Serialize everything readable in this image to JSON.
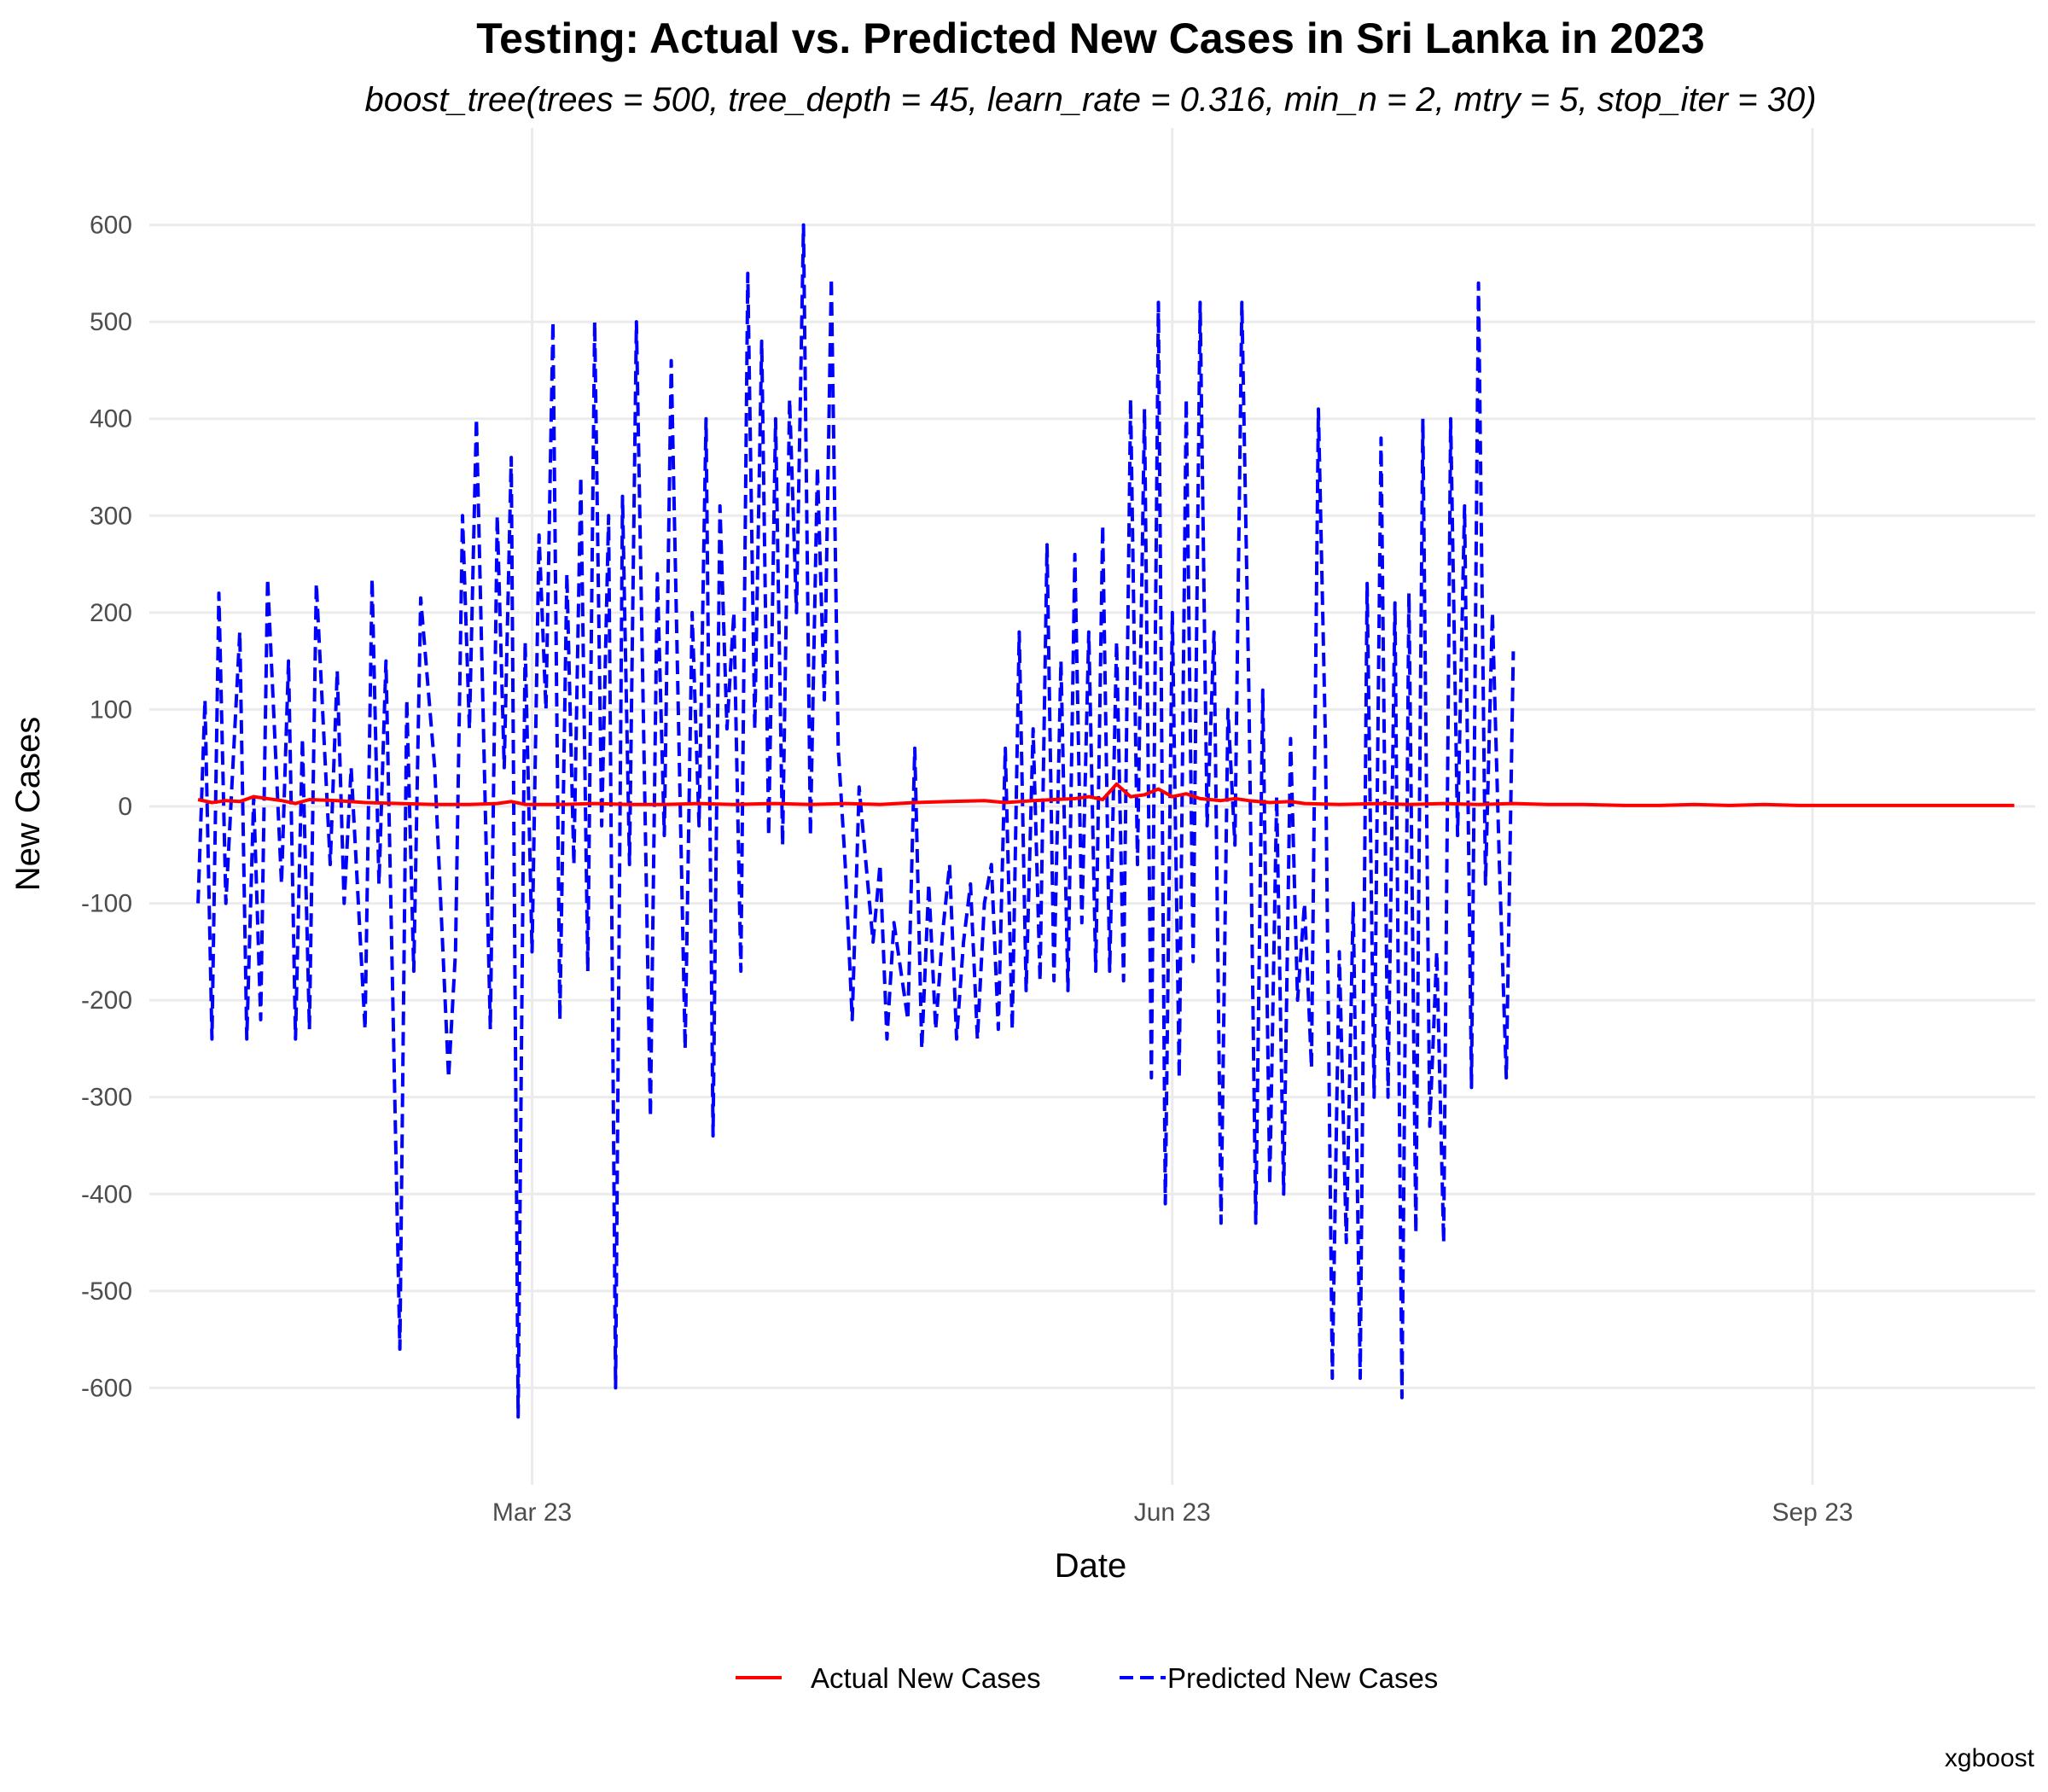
{
  "chart_data": {
    "type": "line",
    "title": "Testing: Actual vs. Predicted New Cases in Sri Lanka in 2023",
    "subtitle": "boost_tree(trees = 500, tree_depth = 45, learn_rate = 0.316, min_n = 2, mtry = 5, stop_iter = 30)",
    "xlabel": "Date",
    "ylabel": "New Cases",
    "caption": "xgboost",
    "x_range": [
      "2023-01-05",
      "2023-10-03"
    ],
    "x_ticks": [
      {
        "date": "2023-03-01",
        "label": "Mar 23"
      },
      {
        "date": "2023-06-01",
        "label": "Jun 23"
      },
      {
        "date": "2023-09-01",
        "label": "Sep 23"
      }
    ],
    "ylim": [
      -700,
      700
    ],
    "y_ticks": [
      600,
      500,
      400,
      300,
      200,
      100,
      0,
      -100,
      -200,
      -300,
      -400,
      -500,
      -600
    ],
    "grid": true,
    "legend_position": "bottom",
    "series": [
      {
        "name": "Actual New Cases",
        "color": "#ff0000",
        "dash": "solid",
        "points": [
          [
            "2023-01-12",
            7
          ],
          [
            "2023-01-14",
            4
          ],
          [
            "2023-01-16",
            6
          ],
          [
            "2023-01-18",
            5
          ],
          [
            "2023-01-20",
            10
          ],
          [
            "2023-01-24",
            6
          ],
          [
            "2023-01-26",
            3
          ],
          [
            "2023-01-28",
            7
          ],
          [
            "2023-02-01",
            6
          ],
          [
            "2023-02-05",
            4
          ],
          [
            "2023-02-10",
            3
          ],
          [
            "2023-02-15",
            2
          ],
          [
            "2023-02-20",
            2
          ],
          [
            "2023-02-24",
            3
          ],
          [
            "2023-02-26",
            5
          ],
          [
            "2023-02-28",
            2
          ],
          [
            "2023-03-05",
            2
          ],
          [
            "2023-03-10",
            3
          ],
          [
            "2023-03-15",
            2
          ],
          [
            "2023-03-20",
            2
          ],
          [
            "2023-03-25",
            3
          ],
          [
            "2023-03-30",
            2
          ],
          [
            "2023-04-05",
            3
          ],
          [
            "2023-04-10",
            2
          ],
          [
            "2023-04-15",
            3
          ],
          [
            "2023-04-20",
            2
          ],
          [
            "2023-04-25",
            4
          ],
          [
            "2023-04-30",
            5
          ],
          [
            "2023-05-05",
            6
          ],
          [
            "2023-05-08",
            4
          ],
          [
            "2023-05-12",
            6
          ],
          [
            "2023-05-15",
            7
          ],
          [
            "2023-05-18",
            8
          ],
          [
            "2023-05-20",
            10
          ],
          [
            "2023-05-22",
            7
          ],
          [
            "2023-05-24",
            23
          ],
          [
            "2023-05-26",
            10
          ],
          [
            "2023-05-28",
            12
          ],
          [
            "2023-05-30",
            18
          ],
          [
            "2023-06-01",
            10
          ],
          [
            "2023-06-03",
            13
          ],
          [
            "2023-06-05",
            8
          ],
          [
            "2023-06-08",
            6
          ],
          [
            "2023-06-10",
            8
          ],
          [
            "2023-06-12",
            6
          ],
          [
            "2023-06-15",
            4
          ],
          [
            "2023-06-18",
            5
          ],
          [
            "2023-06-20",
            3
          ],
          [
            "2023-06-25",
            2
          ],
          [
            "2023-07-01",
            3
          ],
          [
            "2023-07-05",
            2
          ],
          [
            "2023-07-10",
            3
          ],
          [
            "2023-07-15",
            2
          ],
          [
            "2023-07-20",
            3
          ],
          [
            "2023-07-25",
            2
          ],
          [
            "2023-07-30",
            2
          ],
          [
            "2023-08-05",
            1
          ],
          [
            "2023-08-10",
            1
          ],
          [
            "2023-08-15",
            2
          ],
          [
            "2023-08-20",
            1
          ],
          [
            "2023-08-25",
            2
          ],
          [
            "2023-08-30",
            1
          ],
          [
            "2023-09-05",
            1
          ],
          [
            "2023-09-10",
            1
          ],
          [
            "2023-09-15",
            1
          ],
          [
            "2023-09-20",
            1
          ],
          [
            "2023-09-25",
            1
          ],
          [
            "2023-09-30",
            1
          ]
        ]
      },
      {
        "name": "Predicted New Cases",
        "color": "#0000ff",
        "dash": "dashed",
        "points": [
          [
            "2023-01-12",
            -100
          ],
          [
            "2023-01-13",
            110
          ],
          [
            "2023-01-14",
            -240
          ],
          [
            "2023-01-15",
            220
          ],
          [
            "2023-01-16",
            -100
          ],
          [
            "2023-01-18",
            180
          ],
          [
            "2023-01-19",
            -240
          ],
          [
            "2023-01-20",
            10
          ],
          [
            "2023-01-21",
            -220
          ],
          [
            "2023-01-22",
            235
          ],
          [
            "2023-01-24",
            -80
          ],
          [
            "2023-01-25",
            150
          ],
          [
            "2023-01-26",
            -240
          ],
          [
            "2023-01-27",
            70
          ],
          [
            "2023-01-28",
            -230
          ],
          [
            "2023-01-29",
            230
          ],
          [
            "2023-01-31",
            -60
          ],
          [
            "2023-02-01",
            140
          ],
          [
            "2023-02-02",
            -100
          ],
          [
            "2023-02-03",
            40
          ],
          [
            "2023-02-05",
            -230
          ],
          [
            "2023-02-06",
            235
          ],
          [
            "2023-02-07",
            -80
          ],
          [
            "2023-02-08",
            150
          ],
          [
            "2023-02-10",
            -560
          ],
          [
            "2023-02-11",
            110
          ],
          [
            "2023-02-12",
            -170
          ],
          [
            "2023-02-13",
            215
          ],
          [
            "2023-02-15",
            40
          ],
          [
            "2023-02-17",
            -280
          ],
          [
            "2023-02-18",
            -150
          ],
          [
            "2023-02-19",
            300
          ],
          [
            "2023-02-20",
            80
          ],
          [
            "2023-02-21",
            400
          ],
          [
            "2023-02-23",
            -230
          ],
          [
            "2023-02-24",
            300
          ],
          [
            "2023-02-25",
            40
          ],
          [
            "2023-02-26",
            360
          ],
          [
            "2023-02-27",
            -630
          ],
          [
            "2023-02-28",
            170
          ],
          [
            "2023-03-01",
            -150
          ],
          [
            "2023-03-02",
            280
          ],
          [
            "2023-03-03",
            100
          ],
          [
            "2023-03-04",
            500
          ],
          [
            "2023-03-05",
            -220
          ],
          [
            "2023-03-06",
            240
          ],
          [
            "2023-03-07",
            -60
          ],
          [
            "2023-03-08",
            340
          ],
          [
            "2023-03-09",
            -170
          ],
          [
            "2023-03-10",
            500
          ],
          [
            "2023-03-11",
            -20
          ],
          [
            "2023-03-12",
            300
          ],
          [
            "2023-03-13",
            -600
          ],
          [
            "2023-03-14",
            320
          ],
          [
            "2023-03-15",
            -60
          ],
          [
            "2023-03-16",
            500
          ],
          [
            "2023-03-18",
            -320
          ],
          [
            "2023-03-19",
            240
          ],
          [
            "2023-03-20",
            -30
          ],
          [
            "2023-03-21",
            460
          ],
          [
            "2023-03-23",
            -250
          ],
          [
            "2023-03-24",
            200
          ],
          [
            "2023-03-25",
            -20
          ],
          [
            "2023-03-26",
            400
          ],
          [
            "2023-03-27",
            -340
          ],
          [
            "2023-03-28",
            310
          ],
          [
            "2023-03-29",
            80
          ],
          [
            "2023-03-30",
            200
          ],
          [
            "2023-03-31",
            -170
          ],
          [
            "2023-04-01",
            550
          ],
          [
            "2023-04-02",
            80
          ],
          [
            "2023-04-03",
            480
          ],
          [
            "2023-04-04",
            -30
          ],
          [
            "2023-04-05",
            400
          ],
          [
            "2023-04-06",
            -40
          ],
          [
            "2023-04-07",
            420
          ],
          [
            "2023-04-08",
            200
          ],
          [
            "2023-04-09",
            600
          ],
          [
            "2023-04-10",
            -30
          ],
          [
            "2023-04-11",
            350
          ],
          [
            "2023-04-12",
            110
          ],
          [
            "2023-04-13",
            545
          ],
          [
            "2023-04-14",
            60
          ],
          [
            "2023-04-15",
            -60
          ],
          [
            "2023-04-16",
            -220
          ],
          [
            "2023-04-17",
            20
          ],
          [
            "2023-04-19",
            -140
          ],
          [
            "2023-04-20",
            -60
          ],
          [
            "2023-04-21",
            -240
          ],
          [
            "2023-04-22",
            -120
          ],
          [
            "2023-04-24",
            -220
          ],
          [
            "2023-04-25",
            60
          ],
          [
            "2023-04-26",
            -250
          ],
          [
            "2023-04-27",
            -80
          ],
          [
            "2023-04-28",
            -230
          ],
          [
            "2023-04-29",
            -130
          ],
          [
            "2023-04-30",
            -60
          ],
          [
            "2023-05-01",
            -240
          ],
          [
            "2023-05-02",
            -140
          ],
          [
            "2023-05-03",
            -80
          ],
          [
            "2023-05-04",
            -240
          ],
          [
            "2023-05-05",
            -100
          ],
          [
            "2023-05-06",
            -60
          ],
          [
            "2023-05-07",
            -230
          ],
          [
            "2023-05-08",
            60
          ],
          [
            "2023-05-09",
            -230
          ],
          [
            "2023-05-10",
            180
          ],
          [
            "2023-05-11",
            -190
          ],
          [
            "2023-05-12",
            80
          ],
          [
            "2023-05-13",
            -180
          ],
          [
            "2023-05-14",
            270
          ],
          [
            "2023-05-15",
            -180
          ],
          [
            "2023-05-16",
            150
          ],
          [
            "2023-05-17",
            -190
          ],
          [
            "2023-05-18",
            260
          ],
          [
            "2023-05-19",
            -120
          ],
          [
            "2023-05-20",
            180
          ],
          [
            "2023-05-21",
            -170
          ],
          [
            "2023-05-22",
            290
          ],
          [
            "2023-05-23",
            -170
          ],
          [
            "2023-05-24",
            170
          ],
          [
            "2023-05-25",
            -180
          ],
          [
            "2023-05-26",
            420
          ],
          [
            "2023-05-27",
            -60
          ],
          [
            "2023-05-28",
            410
          ],
          [
            "2023-05-29",
            -280
          ],
          [
            "2023-05-30",
            520
          ],
          [
            "2023-05-31",
            -410
          ],
          [
            "2023-06-01",
            200
          ],
          [
            "2023-06-02",
            -280
          ],
          [
            "2023-06-03",
            420
          ],
          [
            "2023-06-04",
            -160
          ],
          [
            "2023-06-05",
            520
          ],
          [
            "2023-06-06",
            -20
          ],
          [
            "2023-06-07",
            180
          ],
          [
            "2023-06-08",
            -430
          ],
          [
            "2023-06-09",
            100
          ],
          [
            "2023-06-10",
            -40
          ],
          [
            "2023-06-11",
            520
          ],
          [
            "2023-06-12",
            120
          ],
          [
            "2023-06-13",
            -430
          ],
          [
            "2023-06-14",
            120
          ],
          [
            "2023-06-15",
            -390
          ],
          [
            "2023-06-16",
            10
          ],
          [
            "2023-06-17",
            -400
          ],
          [
            "2023-06-18",
            70
          ],
          [
            "2023-06-19",
            -200
          ],
          [
            "2023-06-20",
            -100
          ],
          [
            "2023-06-21",
            -270
          ],
          [
            "2023-06-22",
            410
          ],
          [
            "2023-06-23",
            70
          ],
          [
            "2023-06-24",
            -590
          ],
          [
            "2023-06-25",
            -150
          ],
          [
            "2023-06-26",
            -450
          ],
          [
            "2023-06-27",
            -100
          ],
          [
            "2023-06-28",
            -590
          ],
          [
            "2023-06-29",
            230
          ],
          [
            "2023-06-30",
            -300
          ],
          [
            "2023-07-01",
            380
          ],
          [
            "2023-07-02",
            -300
          ],
          [
            "2023-07-03",
            210
          ],
          [
            "2023-07-04",
            -610
          ],
          [
            "2023-07-05",
            220
          ],
          [
            "2023-07-06",
            -440
          ],
          [
            "2023-07-07",
            400
          ],
          [
            "2023-07-08",
            -330
          ],
          [
            "2023-07-09",
            -150
          ],
          [
            "2023-07-10",
            -450
          ],
          [
            "2023-07-11",
            400
          ],
          [
            "2023-07-12",
            -30
          ],
          [
            "2023-07-13",
            310
          ],
          [
            "2023-07-14",
            -290
          ],
          [
            "2023-07-15",
            540
          ],
          [
            "2023-07-16",
            -80
          ],
          [
            "2023-07-17",
            200
          ],
          [
            "2023-07-18",
            -60
          ],
          [
            "2023-07-19",
            -280
          ],
          [
            "2023-07-20",
            160
          ]
        ]
      }
    ]
  }
}
